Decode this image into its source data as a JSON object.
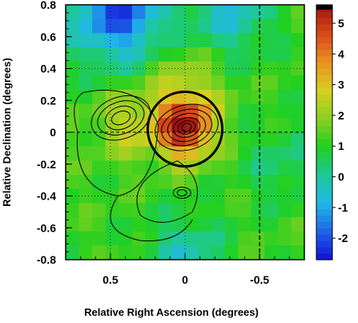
{
  "chart_data": {
    "type": "heatmap",
    "title": "",
    "xlabel": "Relative Right Ascension (degrees)",
    "ylabel": "Relative Declination (degrees)",
    "xlim": [
      0.8,
      -0.8
    ],
    "ylim": [
      -0.8,
      0.8
    ],
    "x_ticks": [
      -0.5,
      0,
      0.5
    ],
    "x_tick_labels": [
      "-0.5",
      "0",
      "0.5"
    ],
    "y_ticks": [
      -0.8,
      -0.6,
      -0.4,
      -0.2,
      0,
      0.2,
      0.4,
      0.6,
      0.8
    ],
    "y_tick_labels": [
      "-0.8",
      "-0.6",
      "-0.4",
      "-0.2",
      "0",
      "0.2",
      "0.4",
      "0.6",
      "0.8"
    ],
    "colorbar": {
      "range": [
        -2.7,
        5.6
      ],
      "ticks": [
        -2,
        -1,
        0,
        1,
        2,
        3,
        4,
        5
      ],
      "tick_labels": [
        "-2",
        "-1",
        "0",
        "1",
        "2",
        "3",
        "4",
        "5"
      ],
      "colors": [
        "#1010d8",
        "#1e64e6",
        "#20b8e8",
        "#1ec898",
        "#20d020",
        "#8ad020",
        "#d8d020",
        "#e89020",
        "#d84818",
        "#a01010"
      ]
    },
    "grid": "dotted",
    "grid_lines_x": [
      -0.5,
      0,
      0.5
    ],
    "grid_lines_y": [
      -0.4,
      0,
      0.4
    ],
    "dashed_lines_x": [
      -0.5
    ],
    "dashed_lines_y": [
      0
    ],
    "overlay_circle": {
      "center_x": 0.0,
      "center_y": 0.02,
      "radius": 0.25
    },
    "hotspot": {
      "x": 0.0,
      "y": 0.02,
      "peak_value": 5.3
    },
    "grid_cells": 18
  }
}
